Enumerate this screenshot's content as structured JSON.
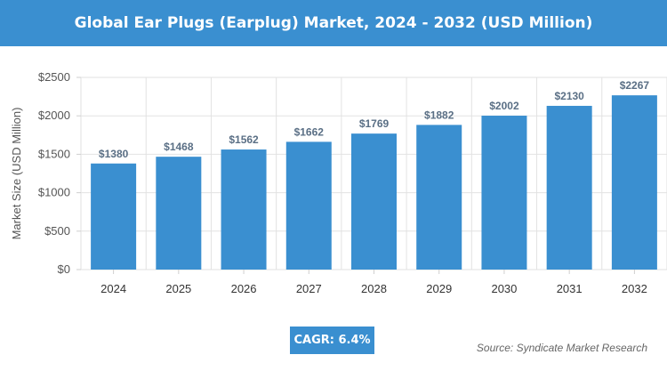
{
  "header": {
    "title": "Global Ear Plugs (Earplug) Market, 2024 - 2032 (USD Million)"
  },
  "chart_data": {
    "type": "bar",
    "title": "Global Ear Plugs (Earplug) Market, 2024 - 2032 (USD Million)",
    "xlabel": "",
    "ylabel": "Market Size (USD Million)",
    "categories": [
      "2024",
      "2025",
      "2026",
      "2027",
      "2028",
      "2029",
      "2030",
      "2031",
      "2032"
    ],
    "values": [
      1380,
      1468,
      1562,
      1662,
      1769,
      1882,
      2002,
      2130,
      2267
    ],
    "data_labels": [
      "$1380",
      "$1468",
      "$1562",
      "$1662",
      "$1769",
      "$1882",
      "$2002",
      "$2130",
      "$2267"
    ],
    "ylim": [
      0,
      2500
    ],
    "yticks": [
      0,
      500,
      1000,
      1500,
      2000,
      2500
    ],
    "ytick_labels": [
      "$0",
      "$500",
      "$1000",
      "$1500",
      "$2000",
      "$2500"
    ],
    "grid": true,
    "bar_color": "#3a8fd0",
    "label_color": "#5a6f85"
  },
  "footer": {
    "cagr_label": "CAGR: 6.4%",
    "source": "Source: Syndicate Market Research"
  }
}
